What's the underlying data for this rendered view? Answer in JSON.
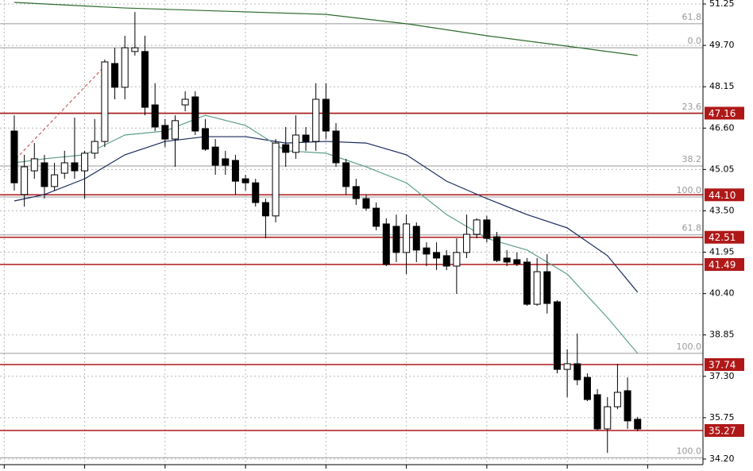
{
  "chart_data": {
    "type": "candlestick",
    "up_color": "#ffffff",
    "down_color": "#000000",
    "grid": true,
    "xlim": [
      -1.42,
      68.5
    ],
    "xticks": [
      -1,
      7,
      15,
      23,
      31,
      39,
      47,
      55,
      63
    ],
    "ylim": [
      33.99,
      51.4
    ],
    "yticks": [
      {
        "value": 34.2,
        "label": "34.20"
      },
      35.75,
      {
        "value": 37.3,
        "label": "37.30"
      },
      38.85,
      {
        "value": 40.4,
        "label": "40.40"
      },
      41.95,
      {
        "value": 43.5,
        "label": "43.50"
      },
      45.05,
      {
        "value": 46.6,
        "label": "46.60"
      },
      48.15,
      {
        "value": 49.7,
        "label": "49.70"
      },
      51.25
    ],
    "candles": {
      "open": [
        46.49,
        44.11,
        45.0,
        45.3,
        44.41,
        44.91,
        45.3,
        45.0,
        45.66,
        46.1,
        49.02,
        48.13,
        49.47,
        49.47,
        47.47,
        46.7,
        46.19,
        47.47,
        47.77,
        46.58,
        45.89,
        45.45,
        45.39,
        44.7,
        44.55,
        43.81,
        43.31,
        45.98,
        45.69,
        46.34,
        46.1,
        47.68,
        46.49,
        45.3,
        44.41,
        43.96,
        43.6,
        43.01,
        42.92,
        41.94,
        42.92,
        42.11,
        41.94,
        41.82,
        41.43,
        41.94,
        42.62,
        43.16,
        42.53,
        41.73,
        41.67,
        41.58,
        40.0,
        41.22,
        40.09,
        37.56,
        37.77,
        37.26,
        36.61,
        35.33,
        36.16,
        36.76,
        35.69
      ],
      "high": [
        47.08,
        45.6,
        46.04,
        45.6,
        45.3,
        45.75,
        46.99,
        45.75,
        46.94,
        49.17,
        49.61,
        50.06,
        50.95,
        50.06,
        48.28,
        46.94,
        47.08,
        47.98,
        47.98,
        46.94,
        46.19,
        45.75,
        45.6,
        44.85,
        44.7,
        43.96,
        46.19,
        46.64,
        47.08,
        46.64,
        48.28,
        48.28,
        46.79,
        45.45,
        44.7,
        44.11,
        43.81,
        43.22,
        43.36,
        43.36,
        43.07,
        42.32,
        42.32,
        42.03,
        42.47,
        43.36,
        43.22,
        43.31,
        42.71,
        42.03,
        41.94,
        41.73,
        41.73,
        41.88,
        40.15,
        38.31,
        38.9,
        37.41,
        36.82,
        36.52,
        37.77,
        37.26,
        35.78
      ],
      "low": [
        44.26,
        43.66,
        44.7,
        43.96,
        44.26,
        44.7,
        44.7,
        43.96,
        45.45,
        45.89,
        47.68,
        47.68,
        49.32,
        47.08,
        46.49,
        45.89,
        45.15,
        47.23,
        46.34,
        45.75,
        44.85,
        44.85,
        44.11,
        44.26,
        43.66,
        42.47,
        43.07,
        45.15,
        45.45,
        45.75,
        45.75,
        46.19,
        45.15,
        44.11,
        43.72,
        43.51,
        42.77,
        41.43,
        41.58,
        41.13,
        41.58,
        41.43,
        41.28,
        41.28,
        40.39,
        41.73,
        42.47,
        42.32,
        41.58,
        41.43,
        41.43,
        39.94,
        39.94,
        39.65,
        37.41,
        36.52,
        36.97,
        36.37,
        35.27,
        34.43,
        36.07,
        35.33,
        35.24
      ],
      "close": [
        44.55,
        45.15,
        45.45,
        44.41,
        44.85,
        45.3,
        45.0,
        45.66,
        46.1,
        49.08,
        48.13,
        49.61,
        49.61,
        47.38,
        46.64,
        46.19,
        46.88,
        47.68,
        46.49,
        45.81,
        45.21,
        45.21,
        44.61,
        44.55,
        43.81,
        43.31,
        46.04,
        45.69,
        46.34,
        46.1,
        47.68,
        46.49,
        45.3,
        44.41,
        43.96,
        43.6,
        42.92,
        41.49,
        41.94,
        43.01,
        42.03,
        41.88,
        41.73,
        41.43,
        41.94,
        42.62,
        43.16,
        42.47,
        41.64,
        41.58,
        41.52,
        40.0,
        41.22,
        40.03,
        37.56,
        37.77,
        37.17,
        36.43,
        35.33,
        36.16,
        36.7,
        35.63,
        35.33
      ]
    },
    "series": [
      {
        "color": "#2e6b2e",
        "x": [
          0,
          11,
          31,
          39,
          47,
          55,
          62
        ],
        "values": [
          51.31,
          51.1,
          50.86,
          50.51,
          50.06,
          49.67,
          49.32
        ]
      },
      {
        "color": "#1a2a5e",
        "x": [
          0,
          3,
          7,
          11,
          15,
          19,
          23,
          27,
          31,
          35,
          39,
          43,
          47,
          51,
          55,
          59,
          62
        ],
        "values": [
          43.87,
          44.11,
          44.7,
          45.6,
          46.1,
          46.28,
          46.28,
          46.04,
          46.1,
          46.04,
          45.6,
          44.61,
          43.96,
          43.36,
          42.86,
          41.82,
          40.45
        ]
      },
      {
        "color": "#5f9e8f",
        "x": [
          0,
          3,
          7,
          11,
          15,
          19,
          23,
          27,
          31,
          35,
          39,
          43,
          47,
          51,
          55,
          59,
          62
        ],
        "values": [
          45.3,
          45.45,
          45.6,
          46.34,
          46.49,
          47.08,
          46.7,
          45.75,
          45.66,
          45.15,
          44.55,
          43.36,
          42.47,
          42.03,
          41.13,
          39.5,
          38.16
        ]
      }
    ],
    "levels": {
      "color": "#b01818",
      "values": [
        47.16,
        44.1,
        42.51,
        41.49,
        37.74,
        35.27
      ],
      "value_labels": [
        "47.16",
        "44.10",
        "42.51",
        "41.49",
        "37.74",
        "35.27"
      ]
    },
    "fib": {
      "color": "#999999",
      "labels": [
        "61.8",
        "0.0",
        "23.6",
        "38.2",
        "100.0",
        "61.8",
        "100.0",
        "100.0"
      ],
      "values": [
        50.51,
        49.61,
        47.14,
        45.18,
        44.02,
        42.6,
        38.16,
        34.25
      ]
    }
  }
}
